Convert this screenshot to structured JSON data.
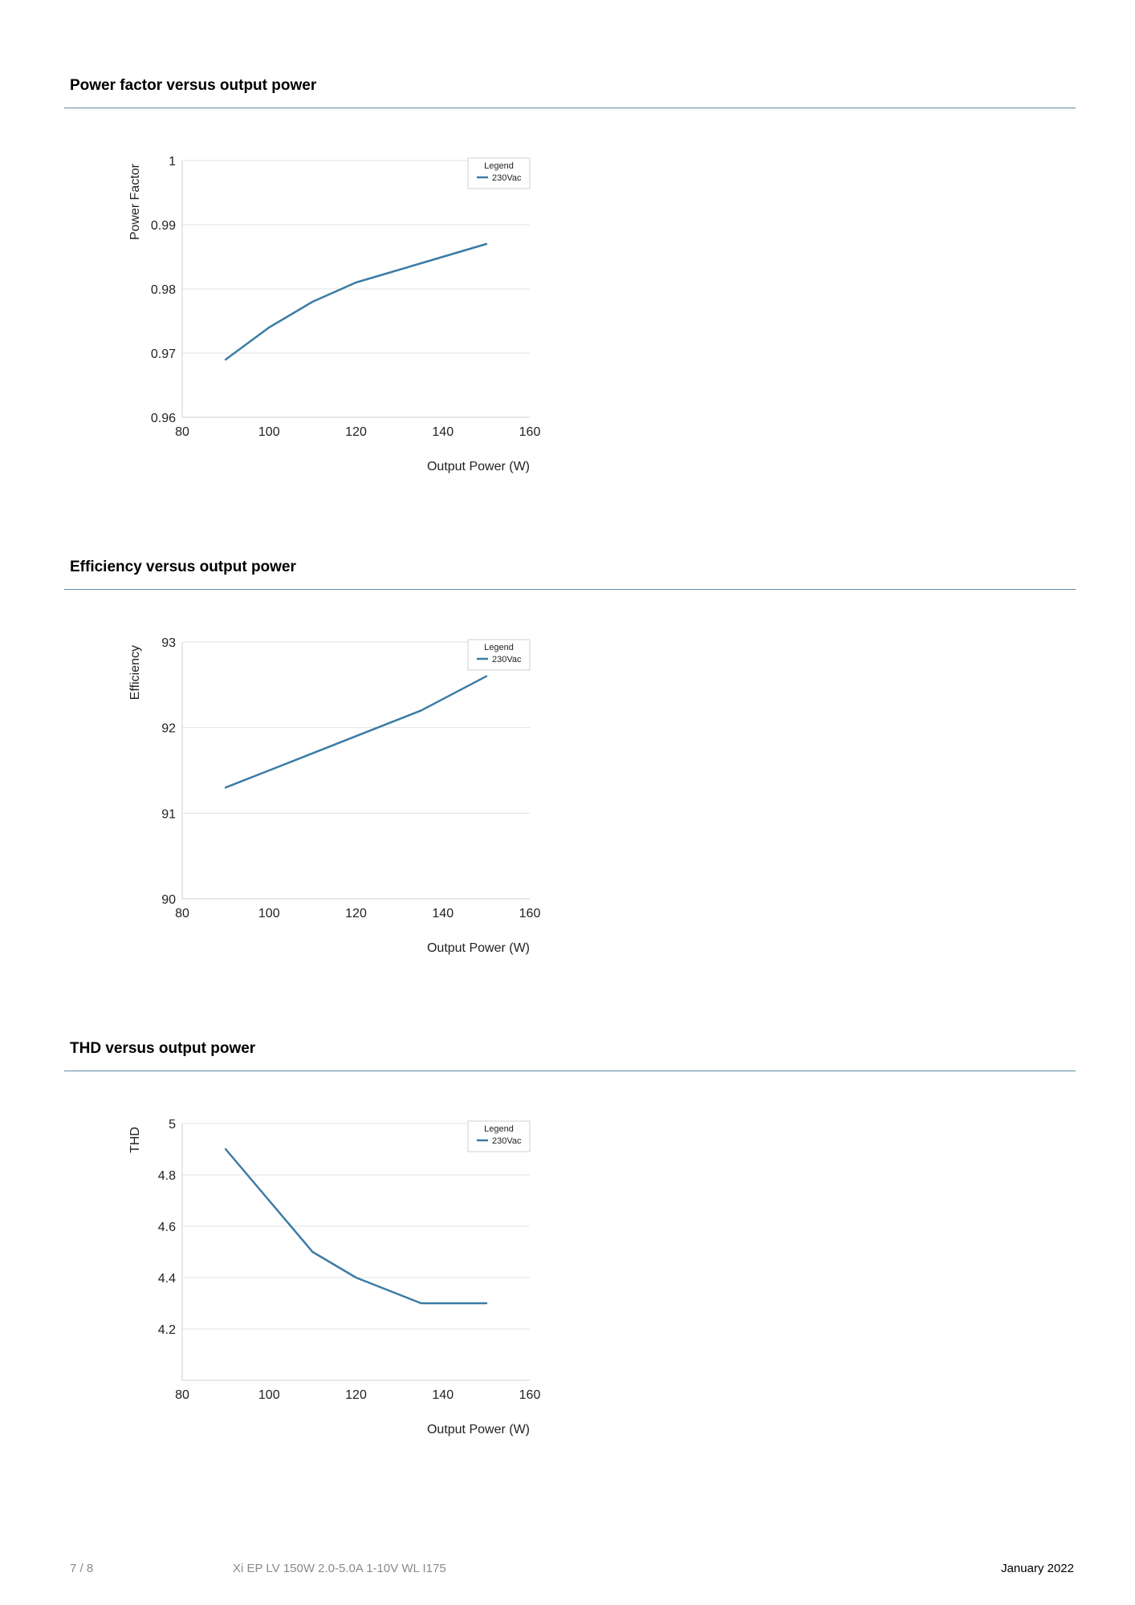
{
  "sections": [
    {
      "title": "Power factor versus output power",
      "chart_data": {
        "type": "line",
        "ylabel": "Power Factor",
        "xlabel": "Output Power (W)",
        "xlim": [
          80,
          160
        ],
        "ylim": [
          0.96,
          1
        ],
        "xticks": [
          80,
          100,
          120,
          140,
          160
        ],
        "xtick_labels": [
          "80",
          "100",
          "120",
          "140",
          "160"
        ],
        "yticks": [
          0.96,
          0.97,
          0.98,
          0.99,
          1
        ],
        "ytick_labels": [
          "0.96",
          "0.97",
          "0.98",
          "0.99",
          "1"
        ],
        "grid": true,
        "legend_title": "Legend",
        "legend_position": "top-right",
        "series": [
          {
            "name": "230Vac",
            "color": "#3a7ca5",
            "x": [
              90,
              100,
              110,
              120,
              135,
              150
            ],
            "y": [
              0.969,
              0.974,
              0.978,
              0.981,
              0.984,
              0.987
            ]
          }
        ]
      }
    },
    {
      "title": "Efficiency versus output power",
      "chart_data": {
        "type": "line",
        "ylabel": "Efficiency",
        "xlabel": "Output Power (W)",
        "xlim": [
          80,
          160
        ],
        "ylim": [
          90,
          93
        ],
        "xticks": [
          80,
          100,
          120,
          140,
          160
        ],
        "xtick_labels": [
          "80",
          "100",
          "120",
          "140",
          "160"
        ],
        "yticks": [
          90,
          91,
          92,
          93
        ],
        "ytick_labels": [
          "90",
          "91",
          "92",
          "93"
        ],
        "grid": true,
        "legend_title": "Legend",
        "legend_position": "top-right",
        "series": [
          {
            "name": "230Vac",
            "color": "#3a7ca5",
            "x": [
              90,
              100,
              110,
              120,
              135,
              150
            ],
            "y": [
              91.3,
              91.5,
              91.7,
              91.9,
              92.2,
              92.6
            ]
          }
        ]
      }
    },
    {
      "title": "THD versus output power",
      "chart_data": {
        "type": "line",
        "ylabel": "THD",
        "xlabel": "Output Power (W)",
        "xlim": [
          80,
          160
        ],
        "ylim": [
          4,
          5
        ],
        "xticks": [
          80,
          100,
          120,
          140,
          160
        ],
        "xtick_labels": [
          "80",
          "100",
          "120",
          "140",
          "160"
        ],
        "yticks": [
          4.2,
          4.4,
          4.6,
          4.8,
          5
        ],
        "ytick_labels": [
          "4.2",
          "4.4",
          "4.6",
          "4.8",
          "5"
        ],
        "grid": true,
        "legend_title": "Legend",
        "legend_position": "top-right",
        "series": [
          {
            "name": "230Vac",
            "color": "#3a7ca5",
            "x": [
              90,
              100,
              110,
              120,
              135,
              150
            ],
            "y": [
              4.9,
              4.7,
              4.5,
              4.4,
              4.3,
              4.3
            ]
          }
        ]
      }
    }
  ],
  "footer": {
    "page": "7 / 8",
    "document": "Xi EP LV 150W 2.0-5.0A 1-10V WL I175",
    "date": "January 2022"
  }
}
